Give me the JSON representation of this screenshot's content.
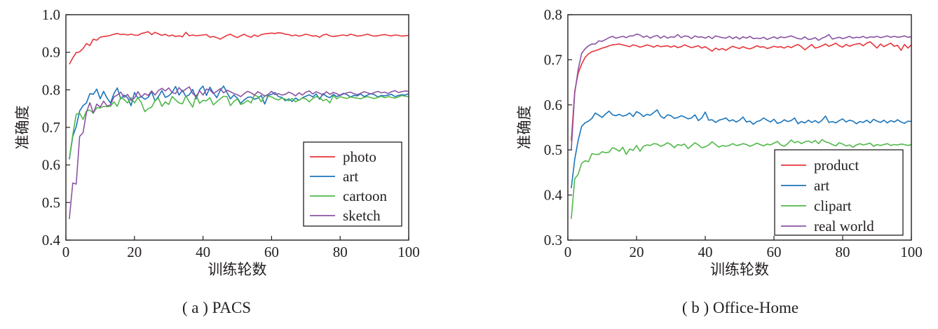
{
  "chart_data": [
    {
      "type": "line",
      "caption": "( a ) PACS",
      "xlabel": "训练轮数",
      "ylabel": "准确度",
      "xlim": [
        0,
        100
      ],
      "ylim": [
        0.4,
        1.0
      ],
      "xticks": [
        "0",
        "20",
        "40",
        "60",
        "80",
        "100"
      ],
      "yticks": [
        "0.4",
        "0.5",
        "0.6",
        "0.7",
        "0.8",
        "0.9",
        "1.0"
      ],
      "legend_position": "lower-right",
      "grid": false,
      "x": [
        1,
        2,
        3,
        4,
        5,
        6,
        7,
        8,
        9,
        10,
        11,
        12,
        13,
        14,
        15,
        16,
        17,
        18,
        19,
        20,
        21,
        22,
        23,
        24,
        25,
        26,
        27,
        28,
        29,
        30,
        31,
        32,
        33,
        34,
        35,
        36,
        37,
        38,
        39,
        40,
        41,
        42,
        43,
        44,
        45,
        46,
        47,
        48,
        49,
        50,
        51,
        52,
        53,
        54,
        55,
        56,
        57,
        58,
        59,
        60,
        61,
        62,
        63,
        64,
        65,
        66,
        67,
        68,
        69,
        70,
        71,
        72,
        73,
        74,
        75,
        76,
        77,
        78,
        79,
        80,
        81,
        82,
        83,
        84,
        85,
        86,
        87,
        88,
        89,
        90,
        91,
        92,
        93,
        94,
        95,
        96,
        97,
        98,
        99,
        100
      ],
      "series": [
        {
          "name": "photo",
          "color": "#e8333a",
          "values": [
            0.868,
            0.885,
            0.899,
            0.901,
            0.91,
            0.923,
            0.918,
            0.935,
            0.932,
            0.94,
            0.942,
            0.943,
            0.945,
            0.948,
            0.95,
            0.947,
            0.948,
            0.946,
            0.948,
            0.946,
            0.945,
            0.95,
            0.952,
            0.955,
            0.947,
            0.953,
            0.949,
            0.945,
            0.948,
            0.943,
            0.946,
            0.942,
            0.944,
            0.941,
            0.953,
            0.944,
            0.946,
            0.944,
            0.945,
            0.946,
            0.947,
            0.94,
            0.942,
            0.939,
            0.935,
            0.94,
            0.945,
            0.948,
            0.943,
            0.939,
            0.944,
            0.948,
            0.943,
            0.94,
            0.946,
            0.942,
            0.947,
            0.949,
            0.95,
            0.951,
            0.95,
            0.952,
            0.951,
            0.948,
            0.947,
            0.944,
            0.946,
            0.943,
            0.945,
            0.948,
            0.946,
            0.943,
            0.944,
            0.94,
            0.946,
            0.948,
            0.944,
            0.942,
            0.943,
            0.945,
            0.946,
            0.944,
            0.948,
            0.946,
            0.943,
            0.944,
            0.946,
            0.948,
            0.945,
            0.943,
            0.944,
            0.946,
            0.947,
            0.945,
            0.944,
            0.946,
            0.945,
            0.943,
            0.944,
            0.945
          ]
        },
        {
          "name": "art",
          "color": "#1a75bc",
          "values": [
            0.615,
            0.676,
            0.702,
            0.744,
            0.758,
            0.765,
            0.79,
            0.788,
            0.802,
            0.776,
            0.796,
            0.778,
            0.765,
            0.79,
            0.805,
            0.776,
            0.786,
            0.779,
            0.758,
            0.793,
            0.778,
            0.782,
            0.775,
            0.78,
            0.795,
            0.77,
            0.782,
            0.798,
            0.78,
            0.784,
            0.793,
            0.809,
            0.786,
            0.799,
            0.782,
            0.787,
            0.801,
            0.776,
            0.8,
            0.81,
            0.785,
            0.807,
            0.792,
            0.779,
            0.798,
            0.81,
            0.793,
            0.776,
            0.786,
            0.778,
            0.764,
            0.773,
            0.78,
            0.781,
            0.775,
            0.778,
            0.785,
            0.762,
            0.785,
            0.788,
            0.793,
            0.782,
            0.78,
            0.771,
            0.776,
            0.769,
            0.778,
            0.772,
            0.779,
            0.783,
            0.787,
            0.781,
            0.789,
            0.775,
            0.79,
            0.783,
            0.779,
            0.788,
            0.782,
            0.786,
            0.791,
            0.787,
            0.781,
            0.785,
            0.784,
            0.789,
            0.782,
            0.786,
            0.79,
            0.787,
            0.781,
            0.785,
            0.784,
            0.786,
            0.788,
            0.782,
            0.785,
            0.787,
            0.786,
            0.79
          ]
        },
        {
          "name": "cartoon",
          "color": "#50b848",
          "values": [
            0.618,
            0.68,
            0.735,
            0.738,
            0.721,
            0.744,
            0.746,
            0.738,
            0.752,
            0.752,
            0.756,
            0.755,
            0.756,
            0.768,
            0.756,
            0.78,
            0.774,
            0.765,
            0.779,
            0.765,
            0.779,
            0.766,
            0.742,
            0.75,
            0.754,
            0.771,
            0.778,
            0.756,
            0.768,
            0.761,
            0.782,
            0.773,
            0.765,
            0.763,
            0.784,
            0.768,
            0.754,
            0.786,
            0.764,
            0.772,
            0.771,
            0.779,
            0.76,
            0.768,
            0.776,
            0.783,
            0.782,
            0.758,
            0.769,
            0.776,
            0.761,
            0.765,
            0.772,
            0.765,
            0.786,
            0.782,
            0.768,
            0.785,
            0.783,
            0.781,
            0.776,
            0.773,
            0.778,
            0.775,
            0.771,
            0.777,
            0.768,
            0.773,
            0.778,
            0.776,
            0.768,
            0.777,
            0.782,
            0.779,
            0.771,
            0.775,
            0.765,
            0.785,
            0.776,
            0.782,
            0.779,
            0.777,
            0.781,
            0.779,
            0.778,
            0.776,
            0.78,
            0.782,
            0.779,
            0.777,
            0.78,
            0.783,
            0.779,
            0.782,
            0.78,
            0.778,
            0.781,
            0.785,
            0.783,
            0.782
          ]
        },
        {
          "name": "sketch",
          "color": "#8a54a2",
          "values": [
            0.456,
            0.552,
            0.549,
            0.676,
            0.686,
            0.74,
            0.766,
            0.738,
            0.762,
            0.754,
            0.77,
            0.757,
            0.76,
            0.781,
            0.786,
            0.794,
            0.78,
            0.788,
            0.772,
            0.778,
            0.795,
            0.781,
            0.79,
            0.785,
            0.797,
            0.786,
            0.798,
            0.804,
            0.797,
            0.805,
            0.793,
            0.79,
            0.806,
            0.795,
            0.802,
            0.808,
            0.79,
            0.782,
            0.797,
            0.786,
            0.802,
            0.8,
            0.79,
            0.796,
            0.803,
            0.792,
            0.799,
            0.795,
            0.79,
            0.787,
            0.782,
            0.79,
            0.796,
            0.792,
            0.786,
            0.795,
            0.79,
            0.783,
            0.788,
            0.796,
            0.787,
            0.79,
            0.786,
            0.788,
            0.794,
            0.79,
            0.784,
            0.792,
            0.786,
            0.794,
            0.797,
            0.789,
            0.795,
            0.791,
            0.786,
            0.795,
            0.788,
            0.793,
            0.79,
            0.785,
            0.789,
            0.792,
            0.794,
            0.79,
            0.787,
            0.791,
            0.795,
            0.792,
            0.789,
            0.793,
            0.796,
            0.792,
            0.794,
            0.79,
            0.795,
            0.798,
            0.793,
            0.795,
            0.797,
            0.796
          ]
        }
      ]
    },
    {
      "type": "line",
      "caption": "( b ) Office-Home",
      "xlabel": "训练轮数",
      "ylabel": "准确度",
      "xlim": [
        0,
        100
      ],
      "ylim": [
        0.3,
        0.8
      ],
      "xticks": [
        "0",
        "20",
        "40",
        "60",
        "80",
        "100"
      ],
      "yticks": [
        "0.3",
        "0.4",
        "0.5",
        "0.6",
        "0.7",
        "0.8"
      ],
      "legend_position": "lower-right",
      "grid": false,
      "x": [
        1,
        2,
        3,
        4,
        5,
        6,
        7,
        8,
        9,
        10,
        11,
        12,
        13,
        14,
        15,
        16,
        17,
        18,
        19,
        20,
        21,
        22,
        23,
        24,
        25,
        26,
        27,
        28,
        29,
        30,
        31,
        32,
        33,
        34,
        35,
        36,
        37,
        38,
        39,
        40,
        41,
        42,
        43,
        44,
        45,
        46,
        47,
        48,
        49,
        50,
        51,
        52,
        53,
        54,
        55,
        56,
        57,
        58,
        59,
        60,
        61,
        62,
        63,
        64,
        65,
        66,
        67,
        68,
        69,
        70,
        71,
        72,
        73,
        74,
        75,
        76,
        77,
        78,
        79,
        80,
        81,
        82,
        83,
        84,
        85,
        86,
        87,
        88,
        89,
        90,
        91,
        92,
        93,
        94,
        95,
        96,
        97,
        98,
        99,
        100
      ],
      "series": [
        {
          "name": "product",
          "color": "#e8333a",
          "values": [
            0.52,
            0.63,
            0.67,
            0.69,
            0.705,
            0.713,
            0.718,
            0.72,
            0.723,
            0.726,
            0.728,
            0.731,
            0.733,
            0.734,
            0.735,
            0.733,
            0.731,
            0.729,
            0.733,
            0.731,
            0.728,
            0.73,
            0.733,
            0.731,
            0.728,
            0.732,
            0.729,
            0.73,
            0.731,
            0.728,
            0.731,
            0.727,
            0.729,
            0.733,
            0.73,
            0.727,
            0.729,
            0.731,
            0.726,
            0.729,
            0.724,
            0.719,
            0.726,
            0.722,
            0.725,
            0.721,
            0.726,
            0.73,
            0.727,
            0.725,
            0.729,
            0.726,
            0.724,
            0.727,
            0.731,
            0.728,
            0.729,
            0.725,
            0.727,
            0.73,
            0.728,
            0.729,
            0.726,
            0.73,
            0.727,
            0.731,
            0.734,
            0.729,
            0.722,
            0.728,
            0.734,
            0.726,
            0.728,
            0.731,
            0.735,
            0.73,
            0.733,
            0.737,
            0.731,
            0.728,
            0.734,
            0.73,
            0.733,
            0.735,
            0.736,
            0.731,
            0.737,
            0.74,
            0.733,
            0.726,
            0.735,
            0.729,
            0.733,
            0.737,
            0.73,
            0.732,
            0.721,
            0.734,
            0.726,
            0.733
          ]
        },
        {
          "name": "art",
          "color": "#1a75bc",
          "values": [
            0.415,
            0.479,
            0.521,
            0.552,
            0.56,
            0.564,
            0.57,
            0.582,
            0.577,
            0.572,
            0.58,
            0.586,
            0.578,
            0.576,
            0.579,
            0.575,
            0.577,
            0.582,
            0.574,
            0.585,
            0.581,
            0.574,
            0.579,
            0.577,
            0.583,
            0.589,
            0.575,
            0.57,
            0.578,
            0.576,
            0.57,
            0.572,
            0.576,
            0.573,
            0.569,
            0.571,
            0.578,
            0.565,
            0.571,
            0.584,
            0.566,
            0.567,
            0.561,
            0.566,
            0.568,
            0.571,
            0.564,
            0.567,
            0.562,
            0.566,
            0.573,
            0.562,
            0.564,
            0.557,
            0.563,
            0.565,
            0.571,
            0.566,
            0.562,
            0.568,
            0.559,
            0.561,
            0.567,
            0.563,
            0.565,
            0.571,
            0.558,
            0.563,
            0.56,
            0.566,
            0.561,
            0.565,
            0.56,
            0.566,
            0.575,
            0.561,
            0.563,
            0.56,
            0.565,
            0.569,
            0.562,
            0.566,
            0.564,
            0.558,
            0.563,
            0.561,
            0.566,
            0.56,
            0.568,
            0.564,
            0.561,
            0.566,
            0.56,
            0.565,
            0.562,
            0.567,
            0.562,
            0.559,
            0.564,
            0.563
          ]
        },
        {
          "name": "clipart",
          "color": "#50b848",
          "values": [
            0.347,
            0.436,
            0.446,
            0.47,
            0.476,
            0.474,
            0.492,
            0.49,
            0.49,
            0.496,
            0.494,
            0.495,
            0.505,
            0.502,
            0.497,
            0.506,
            0.49,
            0.502,
            0.499,
            0.51,
            0.497,
            0.508,
            0.511,
            0.51,
            0.514,
            0.513,
            0.508,
            0.511,
            0.516,
            0.512,
            0.505,
            0.512,
            0.51,
            0.513,
            0.503,
            0.509,
            0.516,
            0.511,
            0.505,
            0.507,
            0.511,
            0.518,
            0.512,
            0.506,
            0.51,
            0.508,
            0.51,
            0.514,
            0.51,
            0.511,
            0.514,
            0.512,
            0.508,
            0.511,
            0.515,
            0.512,
            0.509,
            0.513,
            0.511,
            0.515,
            0.519,
            0.511,
            0.508,
            0.514,
            0.522,
            0.516,
            0.519,
            0.514,
            0.518,
            0.52,
            0.516,
            0.521,
            0.514,
            0.523,
            0.518,
            0.516,
            0.512,
            0.509,
            0.516,
            0.513,
            0.509,
            0.511,
            0.506,
            0.511,
            0.514,
            0.511,
            0.513,
            0.515,
            0.508,
            0.512,
            0.51,
            0.512,
            0.514,
            0.51,
            0.512,
            0.511,
            0.513,
            0.512,
            0.51,
            0.512
          ]
        },
        {
          "name": "real world",
          "color": "#8a54a2",
          "values": [
            0.5,
            0.626,
            0.678,
            0.714,
            0.724,
            0.731,
            0.735,
            0.735,
            0.742,
            0.741,
            0.745,
            0.749,
            0.752,
            0.748,
            0.75,
            0.752,
            0.749,
            0.753,
            0.753,
            0.757,
            0.755,
            0.75,
            0.753,
            0.748,
            0.752,
            0.754,
            0.748,
            0.753,
            0.748,
            0.751,
            0.75,
            0.756,
            0.749,
            0.753,
            0.752,
            0.747,
            0.753,
            0.75,
            0.751,
            0.748,
            0.752,
            0.747,
            0.753,
            0.751,
            0.749,
            0.748,
            0.752,
            0.747,
            0.751,
            0.746,
            0.751,
            0.748,
            0.752,
            0.747,
            0.748,
            0.747,
            0.75,
            0.745,
            0.748,
            0.751,
            0.747,
            0.751,
            0.749,
            0.751,
            0.753,
            0.75,
            0.747,
            0.746,
            0.751,
            0.745,
            0.746,
            0.749,
            0.743,
            0.748,
            0.751,
            0.756,
            0.746,
            0.748,
            0.75,
            0.747,
            0.749,
            0.752,
            0.748,
            0.75,
            0.749,
            0.752,
            0.748,
            0.751,
            0.75,
            0.752,
            0.749,
            0.751,
            0.753,
            0.75,
            0.752,
            0.75,
            0.751,
            0.753,
            0.75,
            0.751
          ]
        }
      ]
    }
  ]
}
